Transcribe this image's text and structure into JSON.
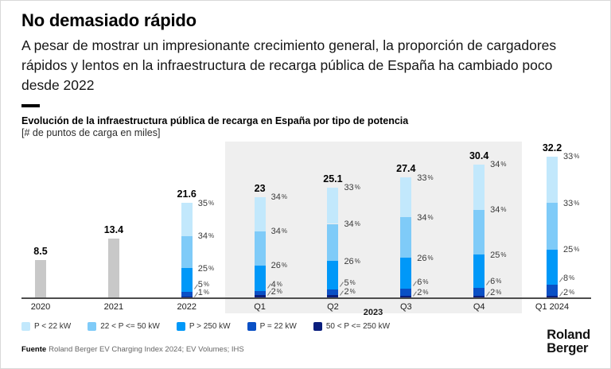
{
  "header": {
    "title": "No demasiado rápido",
    "subtitle": "A pesar de mostrar un impresionante crecimiento general, la proporción de cargadores rápidos y lentos en la infraestructura de recarga pública de España ha cambiado poco desde 2022"
  },
  "chart": {
    "heading": "Evolución de la infraestructura pública de recarga en España por tipo de potencia",
    "unit_note": "[# de puntos de carga en miles]"
  },
  "chart_data": {
    "type": "bar",
    "stacked": true,
    "title": "Evolución de la infraestructura pública de recarga en España por tipo de potencia",
    "unit": "# de puntos de carga en miles",
    "categories": [
      "2020",
      "2021",
      "2022",
      "Q1",
      "Q2",
      "Q3",
      "Q4",
      "Q1 2024"
    ],
    "totals": [
      8.5,
      13.4,
      21.6,
      23,
      25.1,
      27.4,
      30.4,
      32.2
    ],
    "segment_labels_top_to_bottom": [
      "P < 22 kW",
      "22 < P <= 50 kW",
      "P > 250 kW",
      "P = 22 kW",
      "50 < P <= 250 kW"
    ],
    "segments_pct_top_to_bottom": {
      "2020": null,
      "2021": null,
      "2022": [
        35,
        34,
        25,
        5,
        1
      ],
      "Q1": [
        34,
        34,
        26,
        4,
        2
      ],
      "Q2": [
        33,
        34,
        26,
        5,
        2
      ],
      "Q3": [
        33,
        34,
        26,
        6,
        2
      ],
      "Q4": [
        34,
        34,
        25,
        6,
        2
      ],
      "Q1 2024": [
        33,
        33,
        25,
        8,
        2
      ]
    },
    "group_highlight": {
      "label": "2023",
      "members": [
        "Q1",
        "Q2",
        "Q3",
        "Q4"
      ]
    },
    "colors": {
      "solid_bar": "#c8c8c8",
      "segments_top_to_bottom": [
        "#c2e8fc",
        "#7fcbf8",
        "#0098f8",
        "#0a50c5",
        "#0a1e7d"
      ],
      "highlight_band": "#efefef",
      "axis": "#4d4d4d"
    },
    "ylim": [
      0,
      34
    ],
    "grid": false,
    "legend_position": "bottom"
  },
  "legend": {
    "items": [
      {
        "label": "P < 22 kW",
        "color": "#c2e8fc"
      },
      {
        "label": "22 < P <= 50 kW",
        "color": "#7fcbf8"
      },
      {
        "label": "P > 250 kW",
        "color": "#0098f8"
      },
      {
        "label": "P = 22 kW",
        "color": "#0a50c5"
      },
      {
        "label": "50 < P <= 250 kW",
        "color": "#0a1e7d"
      }
    ]
  },
  "source": {
    "prefix": "Fuente",
    "text": "Roland Berger EV Charging Index 2024; EV Volumes; IHS"
  },
  "logo": {
    "line1": "Roland",
    "line2": "Berger"
  }
}
